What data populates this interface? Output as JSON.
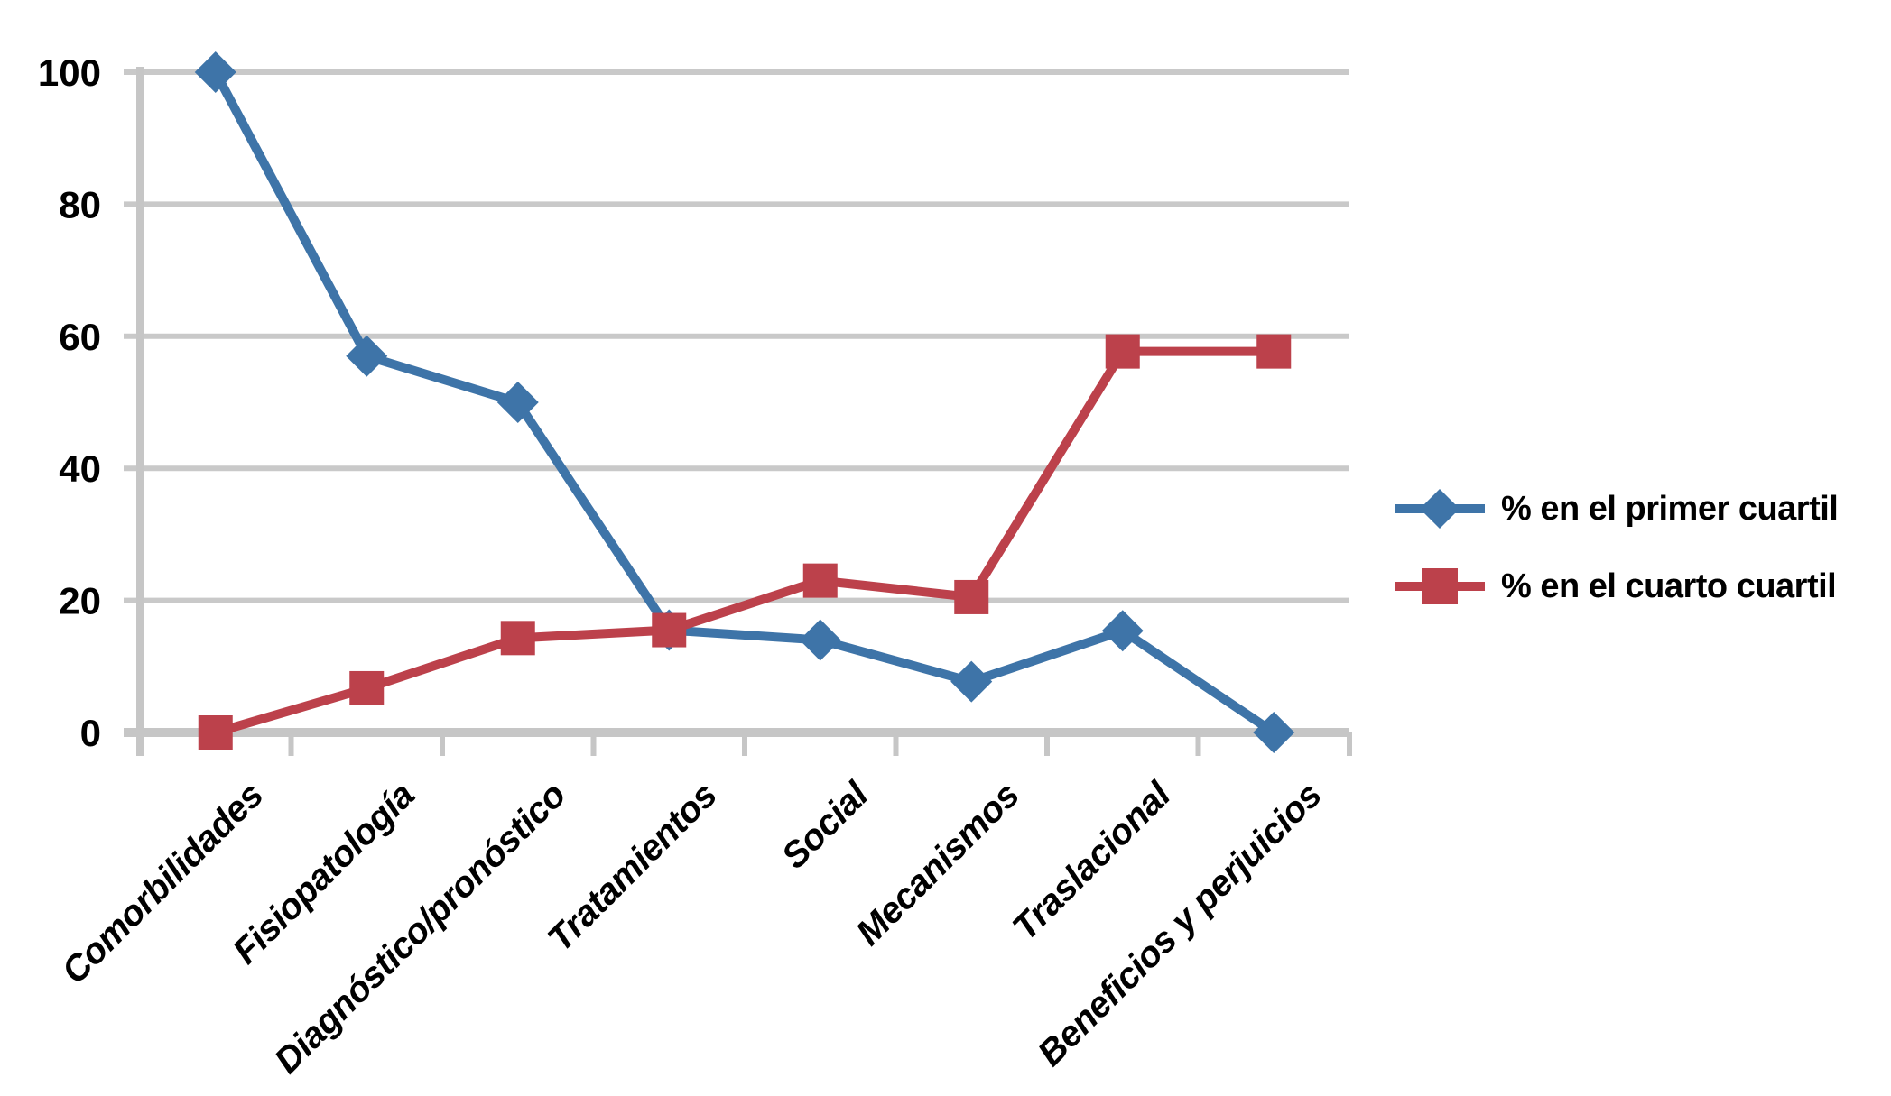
{
  "figure": {
    "background": "#ffffff"
  },
  "chart_data": {
    "type": "line",
    "categories": [
      "Comorbilidades",
      "Fisiopatología",
      "Diagnóstico/pronóstico",
      "Tratamientos",
      "Social",
      "Mecanismos",
      "Traslacional",
      "Beneficios y perjuicios"
    ],
    "series": [
      {
        "name": "% en el primer cuartil",
        "marker": "diamond",
        "color": "#3E74A8",
        "values": [
          100,
          57,
          50,
          15.5,
          14,
          7.7,
          15.4,
          0
        ]
      },
      {
        "name": "% en el cuarto cuartil",
        "marker": "square",
        "color": "#BC414B",
        "values": [
          0,
          6.7,
          14.3,
          15.5,
          23,
          20.5,
          57.7,
          57.7
        ]
      }
    ],
    "ylim": [
      0,
      100
    ],
    "yticks": [
      0,
      20,
      40,
      60,
      80,
      100
    ],
    "grid": "horizontal",
    "grid_color": "#C9C9C9",
    "axis_color": "#C6C6C6",
    "text_color": "#000000",
    "legend_position": "right"
  }
}
